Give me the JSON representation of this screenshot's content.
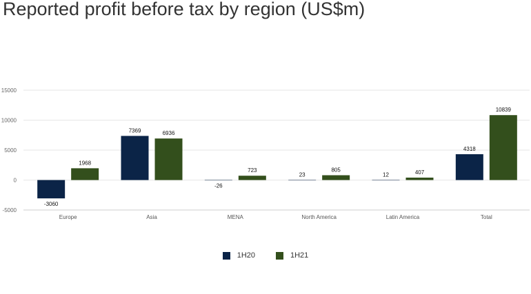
{
  "chart_data": {
    "type": "bar",
    "title": "Reported profit before tax by region (US$m)",
    "categories": [
      "Europe",
      "Asia",
      "MENA",
      "North America",
      "Latin America",
      "Total"
    ],
    "series": [
      {
        "name": "1H20",
        "color": "#0b2447",
        "values": [
          -3060,
          7369,
          -26,
          23,
          12,
          4318
        ]
      },
      {
        "name": "1H21",
        "color": "#334f1c",
        "values": [
          1968,
          6936,
          723,
          805,
          407,
          10839
        ]
      }
    ],
    "yticks": [
      15000,
      10000,
      5000,
      0,
      -5000
    ],
    "ylim": [
      -5000,
      15000
    ],
    "grid": true,
    "legend": "bottom-center"
  }
}
